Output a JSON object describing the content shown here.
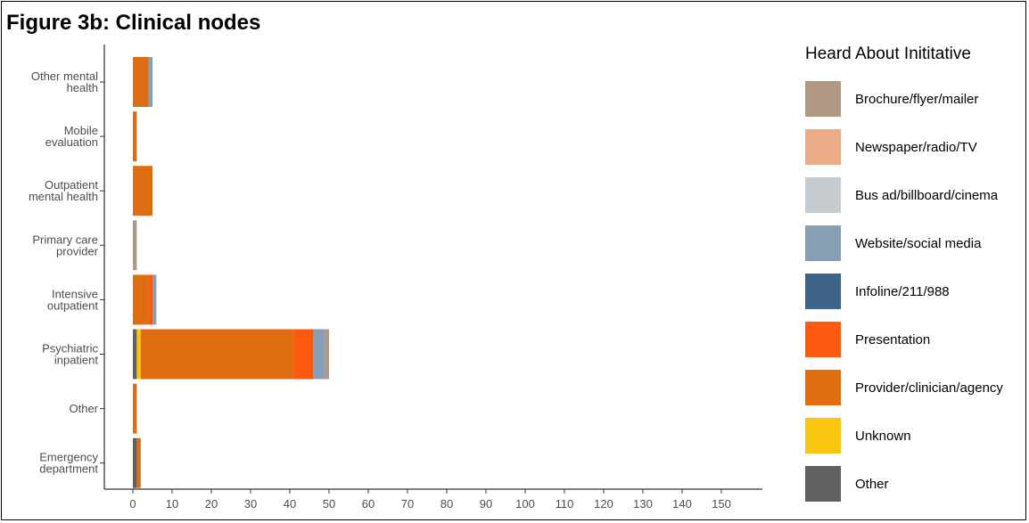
{
  "chart_data": {
    "type": "bar",
    "orientation": "horizontal",
    "stacked": true,
    "title": "Figure 3b: Clinical nodes",
    "xlabel": "",
    "ylabel": "",
    "xlim": [
      0,
      160
    ],
    "x_ticks": [
      0,
      10,
      20,
      30,
      40,
      50,
      60,
      70,
      80,
      90,
      100,
      110,
      120,
      130,
      140,
      150
    ],
    "grid": false,
    "legend_position": "right",
    "categories": [
      [
        "Other mental",
        "health"
      ],
      [
        "Mobile",
        "evaluation"
      ],
      [
        "Outpatient",
        "mental health"
      ],
      [
        "Primary care",
        "provider"
      ],
      [
        "Intensive",
        "outpatient"
      ],
      [
        "Psychiatric",
        "inpatient"
      ],
      [
        "Other"
      ],
      [
        "Emergency",
        "department"
      ]
    ],
    "legend_title": "Heard About Inititative",
    "series": [
      {
        "name": "Brochure/flyer/mailer",
        "color": "#b09883",
        "values": [
          0,
          0,
          0,
          1,
          0,
          1,
          0,
          0
        ]
      },
      {
        "name": "Newspaper/radio/TV",
        "color": "#ebab87",
        "values": [
          0,
          0,
          0,
          0,
          0,
          0,
          0,
          0
        ]
      },
      {
        "name": "Bus ad/billboard/cinema",
        "color": "#c7ccd1",
        "values": [
          0,
          0,
          0,
          0,
          0,
          0,
          0,
          0
        ]
      },
      {
        "name": "Website/social media",
        "color": "#869fb5",
        "values": [
          1,
          0,
          0,
          0,
          1,
          3,
          0,
          0
        ]
      },
      {
        "name": "Infoline/211/988",
        "color": "#3e6487",
        "values": [
          0,
          0,
          0,
          0,
          0,
          0,
          0,
          0
        ]
      },
      {
        "name": "Presentation",
        "color": "#fd5a10",
        "values": [
          0,
          0,
          0,
          0,
          1,
          5,
          0,
          0
        ]
      },
      {
        "name": "Provider/clinician/agency",
        "color": "#dd6d0f",
        "values": [
          4,
          1,
          5,
          0,
          4,
          39,
          1,
          1
        ]
      },
      {
        "name": "Unknown",
        "color": "#f8c510",
        "values": [
          0,
          0,
          0,
          0,
          0,
          1,
          0,
          0
        ]
      },
      {
        "name": "Other",
        "color": "#616161",
        "values": [
          0,
          0,
          0,
          0,
          0,
          1,
          0,
          1
        ]
      }
    ]
  }
}
